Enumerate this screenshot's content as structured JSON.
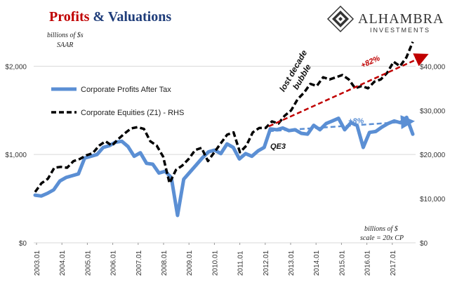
{
  "title": {
    "part1": "Profits",
    "part2": " & Valuations",
    "part1_color": "#c00000",
    "part2_color": "#1f3d7a"
  },
  "logo": {
    "name": "ALHAMBRA",
    "sub": "INVESTMENTS",
    "icon": "alhambra-diamond-icon"
  },
  "notes": {
    "left_units_line1": "billions of $s",
    "left_units_line2": "SAAR",
    "right_units_line1": "billions of $",
    "right_units_line2": "scale = 20x CP"
  },
  "annotations": {
    "lost_decade_line1": "lost decade",
    "lost_decade_line2": "bubble",
    "qe3": "QE3",
    "pct_equities": "+82%",
    "pct_profits": "+8%"
  },
  "colors": {
    "profits": "#5b8fd4",
    "equities": "#000000",
    "arrow_red": "#c00000",
    "arrow_blue": "#5b8fd4",
    "gridline": "#d9d9d9"
  },
  "chart_data": {
    "type": "line",
    "x_ticks": [
      "2003.01",
      "2004.01",
      "2005.01",
      "2006.01",
      "2007.01",
      "2008.01",
      "2009.01",
      "2010.01",
      "2011.01",
      "2012.01",
      "2013.01",
      "2014.01",
      "2015.01",
      "2016.01",
      "2017.01"
    ],
    "y_left": {
      "ticks": [
        "$0",
        "$1,000",
        "$2,000"
      ],
      "ylim": [
        0,
        2400
      ]
    },
    "y_right": {
      "ticks": [
        "$0",
        "$10,000",
        "$20,000",
        "$30,000",
        "$40,000"
      ],
      "ylim": [
        0,
        48000
      ]
    },
    "legend_position": "left",
    "grid": "horizontal",
    "series": [
      {
        "name": "Corporate Profits After Tax",
        "axis": "left",
        "style": "solid",
        "values": [
          540,
          530,
          560,
          600,
          700,
          740,
          760,
          780,
          960,
          980,
          1000,
          1080,
          1100,
          1140,
          1150,
          1090,
          980,
          1020,
          900,
          890,
          790,
          810,
          740,
          310,
          720,
          800,
          880,
          960,
          1030,
          1050,
          1010,
          1120,
          1080,
          950,
          1010,
          980,
          1040,
          1080,
          1290,
          1280,
          1300,
          1270,
          1280,
          1240,
          1230,
          1330,
          1280,
          1350,
          1380,
          1410,
          1280,
          1360,
          1330,
          1080,
          1250,
          1260,
          1310,
          1350,
          1380,
          1360,
          1420,
          1230
        ]
      },
      {
        "name": "Corporate Equities (Z1) - RHS",
        "axis": "right",
        "style": "dashed",
        "values": [
          11500,
          13500,
          14500,
          17000,
          17200,
          17000,
          18500,
          19000,
          19800,
          20300,
          22000,
          23000,
          22000,
          23500,
          24800,
          25900,
          26200,
          25800,
          23000,
          22000,
          19500,
          13500,
          16500,
          17500,
          19000,
          21000,
          21500,
          18500,
          20500,
          22500,
          24500,
          25000,
          20500,
          22000,
          25000,
          26000,
          26000,
          27500,
          27000,
          28800,
          30000,
          32500,
          34000,
          36000,
          35500,
          37500,
          37000,
          37500,
          38000,
          37000,
          35000,
          35500,
          35000,
          36500,
          37000,
          38500,
          41000,
          40000,
          42000,
          45500
        ]
      }
    ]
  }
}
